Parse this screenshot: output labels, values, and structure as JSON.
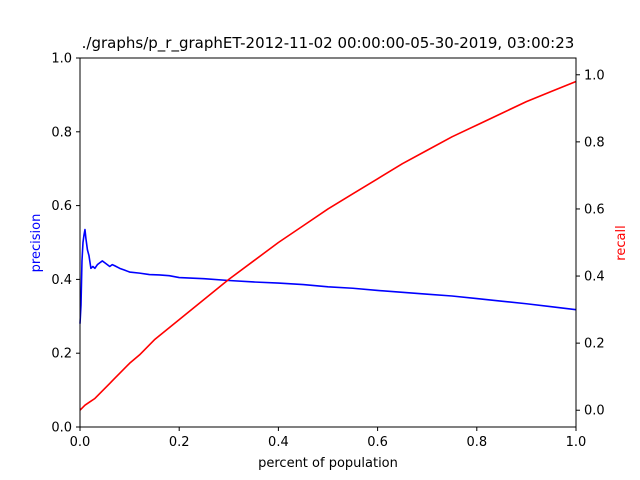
{
  "chart_data": {
    "type": "line",
    "title": "./graphs/p_r_graphET-2012-11-02 00:00:00-05-30-2019, 03:00:23",
    "xlabel": "percent of population",
    "ylabel_left": "precision",
    "ylabel_right": "recall",
    "xlim": [
      0.0,
      1.0
    ],
    "ylim_left": [
      0.0,
      1.0
    ],
    "ylim_right": [
      -0.05,
      1.05
    ],
    "x_ticks": [
      "0.0",
      "0.2",
      "0.4",
      "0.6",
      "0.8",
      "1.0"
    ],
    "y_ticks_left": [
      "0.0",
      "0.2",
      "0.4",
      "0.6",
      "0.8",
      "1.0"
    ],
    "y_ticks_right": [
      "0.0",
      "0.2",
      "0.4",
      "0.6",
      "0.8",
      "1.0"
    ],
    "grid": false,
    "colors": {
      "precision": "#0000ff",
      "recall": "#ff0000",
      "axes": "#000000"
    },
    "series": [
      {
        "axis": "left",
        "color": "#0000ff",
        "x": [
          0.0,
          0.002,
          0.004,
          0.006,
          0.008,
          0.01,
          0.012,
          0.015,
          0.018,
          0.022,
          0.026,
          0.03,
          0.035,
          0.04,
          0.045,
          0.05,
          0.055,
          0.06,
          0.065,
          0.07,
          0.08,
          0.09,
          0.1,
          0.12,
          0.14,
          0.16,
          0.18,
          0.2,
          0.25,
          0.3,
          0.35,
          0.4,
          0.45,
          0.5,
          0.55,
          0.6,
          0.65,
          0.7,
          0.75,
          0.8,
          0.85,
          0.9,
          0.95,
          1.0
        ],
        "y": [
          0.28,
          0.33,
          0.45,
          0.5,
          0.52,
          0.535,
          0.51,
          0.48,
          0.465,
          0.43,
          0.435,
          0.43,
          0.44,
          0.445,
          0.45,
          0.445,
          0.44,
          0.435,
          0.44,
          0.437,
          0.43,
          0.425,
          0.42,
          0.417,
          0.413,
          0.412,
          0.41,
          0.405,
          0.402,
          0.397,
          0.393,
          0.39,
          0.386,
          0.38,
          0.376,
          0.37,
          0.365,
          0.36,
          0.355,
          0.348,
          0.341,
          0.334,
          0.326,
          0.318
        ]
      },
      {
        "axis": "right",
        "color": "#ff0000",
        "x": [
          0.0,
          0.01,
          0.02,
          0.03,
          0.04,
          0.05,
          0.06,
          0.07,
          0.08,
          0.1,
          0.12,
          0.15,
          0.2,
          0.25,
          0.3,
          0.35,
          0.4,
          0.45,
          0.5,
          0.55,
          0.6,
          0.65,
          0.7,
          0.75,
          0.8,
          0.85,
          0.9,
          0.95,
          1.0
        ],
        "y": [
          0.0,
          0.015,
          0.025,
          0.035,
          0.05,
          0.065,
          0.08,
          0.095,
          0.11,
          0.14,
          0.165,
          0.21,
          0.27,
          0.33,
          0.39,
          0.445,
          0.5,
          0.55,
          0.6,
          0.645,
          0.69,
          0.735,
          0.775,
          0.815,
          0.85,
          0.885,
          0.92,
          0.95,
          0.98
        ]
      }
    ]
  }
}
